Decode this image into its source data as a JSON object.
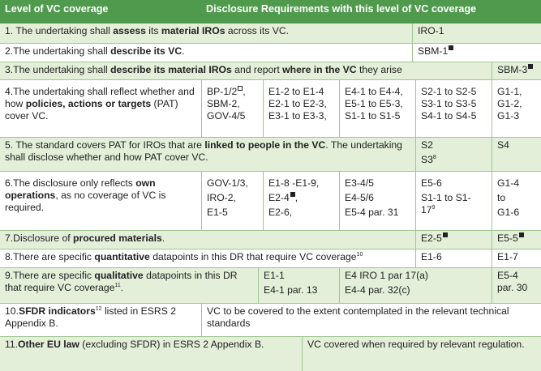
{
  "header": {
    "col1": "Level of VC coverage",
    "col2": "Disclosure Requirements with this level of VC coverage"
  },
  "rows": {
    "r1": {
      "pre": "1. The undertaking shall ",
      "b1": "assess",
      "mid": " its ",
      "b2": "material IROs",
      "post": " across its VC.",
      "c1": "IRO-1"
    },
    "r2": {
      "pre": "2.The undertaking shall ",
      "b1": "describe its VC",
      "post": ".",
      "c1": "SBM-1"
    },
    "r3": {
      "pre": "3.The undertaking shall ",
      "b1": "describe its material IROs",
      "mid": " and report ",
      "b2": "where in the VC",
      "post": " they arise",
      "c1": "SBM-3"
    },
    "r4": {
      "pre": "4.The undertaking shall reflect whether and how ",
      "b1": "policies, actions or targets",
      "post": " (PAT) cover VC.",
      "c1": [
        "BP-1/2",
        "SBM-2,",
        "GOV-4/5"
      ],
      "c2": [
        "E1-2 to E1-4",
        "E2-1 to E2-3,",
        "E3-1 to E3-3,"
      ],
      "c3": [
        "E4-1 to E4-4,",
        "E5-1 to E5-3,",
        "S1-1 to S1-5"
      ],
      "c4": [
        "S2-1 to S2-5",
        "S3-1 to S3-5",
        "S4-1 to S4-5"
      ],
      "c5": [
        "G1-1,",
        "G1-2,",
        "G1-3"
      ]
    },
    "r5": {
      "pre": "5. The standard covers PAT for IROs that are ",
      "b1": "linked to people in the VC",
      "post": ". The undertaking shall disclose whether and how PAT cover VC.",
      "c1a": "S2",
      "c1b": "S3",
      "c1b_sup": "8",
      "c2": "S4"
    },
    "r6": {
      "pre": "6.The disclosure only reflects ",
      "b1": "own operations",
      "post": ", as no coverage of VC is required.",
      "c1": [
        "GOV-1/3,",
        "IRO-2,",
        "E1-5"
      ],
      "c2": [
        "E1-8 -E1-9,",
        "E2-4",
        "E2-6,"
      ],
      "c3": [
        "E3-4/5",
        "E4-5/6",
        "E5-4 par. 31"
      ],
      "c4": [
        "E5-6",
        "S1-1 to S1-",
        "17"
      ],
      "c4_sup": "9",
      "c5": [
        "G1-4",
        "to",
        "G1-6"
      ]
    },
    "r7": {
      "pre": "7.Disclosure of ",
      "b1": "procured materials",
      "post": ".",
      "c1": "E2-5",
      "c2": "E5-5"
    },
    "r8": {
      "pre": "8.There are specific ",
      "b1": "quantitative",
      "post": " datapoints in this DR that require VC coverage",
      "sup": "10",
      "c1": "E1-6",
      "c2": "E1-7"
    },
    "r9": {
      "pre": "9.There are specific ",
      "b1": "qualitative",
      "post": " datapoints in this DR that require VC coverage",
      "sup": "11",
      "tail": ".",
      "c1": [
        "E1-1",
        "E4-1 par. 13"
      ],
      "c2": [
        "E4 IRO 1 par 17(a)",
        "E4-4 par. 32(c)"
      ],
      "c3": [
        "E5-4",
        "par. 30"
      ]
    },
    "r10": {
      "pre": "10.",
      "b1": "SFDR indicators",
      "sup": "12",
      "post": " listed in ESRS 2 Appendix B.",
      "c1": "VC to be covered to the extent contemplated in the relevant technical standards"
    },
    "r11": {
      "pre": "11.",
      "b1": "Other EU law",
      "post": " (excluding SFDR) in ESRS 2 Appendix B.",
      "c1": "VC covered when required by relevant regulation."
    }
  }
}
